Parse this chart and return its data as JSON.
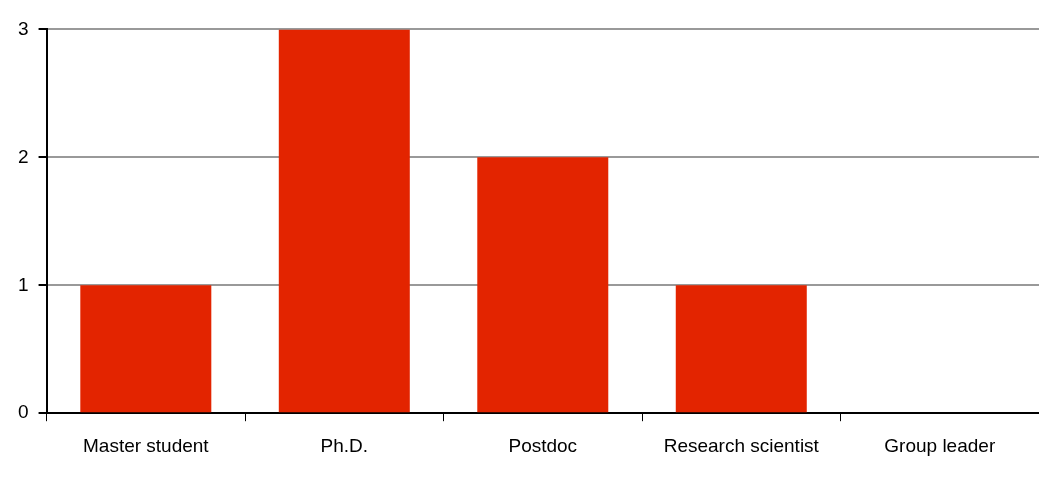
{
  "chart_data": {
    "type": "bar",
    "categories": [
      "Master student",
      "Ph.D.",
      "Postdoc",
      "Research scientist",
      "Group leader"
    ],
    "values": [
      1,
      3,
      2,
      1,
      0
    ],
    "color": "#e32400",
    "ylim": [
      0,
      3
    ],
    "yticks": [
      0,
      1,
      2,
      3
    ],
    "grid": "y",
    "legend": false
  }
}
